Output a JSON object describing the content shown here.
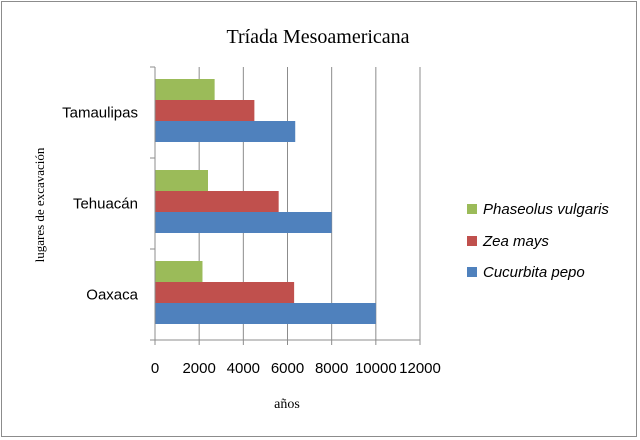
{
  "chart_data": {
    "type": "bar",
    "orientation": "horizontal",
    "title": "Tríada Mesoamericana",
    "xlabel": "años",
    "ylabel": "lugares de excavación",
    "categories": [
      "Tamaulipas",
      "Tehuacán",
      "Oaxaca"
    ],
    "xlim": [
      0,
      12000
    ],
    "x_ticks": [
      "0",
      "2000",
      "4000",
      "6000",
      "8000",
      "10000",
      "12000"
    ],
    "grid": "vertical major gridlines",
    "legend_position": "right",
    "series": [
      {
        "name": "Phaseolus vulgaris",
        "color": "#9bbb59",
        "values": [
          2700,
          2400,
          2150
        ]
      },
      {
        "name": "Zea mays",
        "color": "#c0504d",
        "values": [
          4500,
          5600,
          6300
        ]
      },
      {
        "name": "Cucurbita pepo",
        "color": "#4f81bd",
        "values": [
          6350,
          8000,
          10000
        ]
      }
    ]
  }
}
